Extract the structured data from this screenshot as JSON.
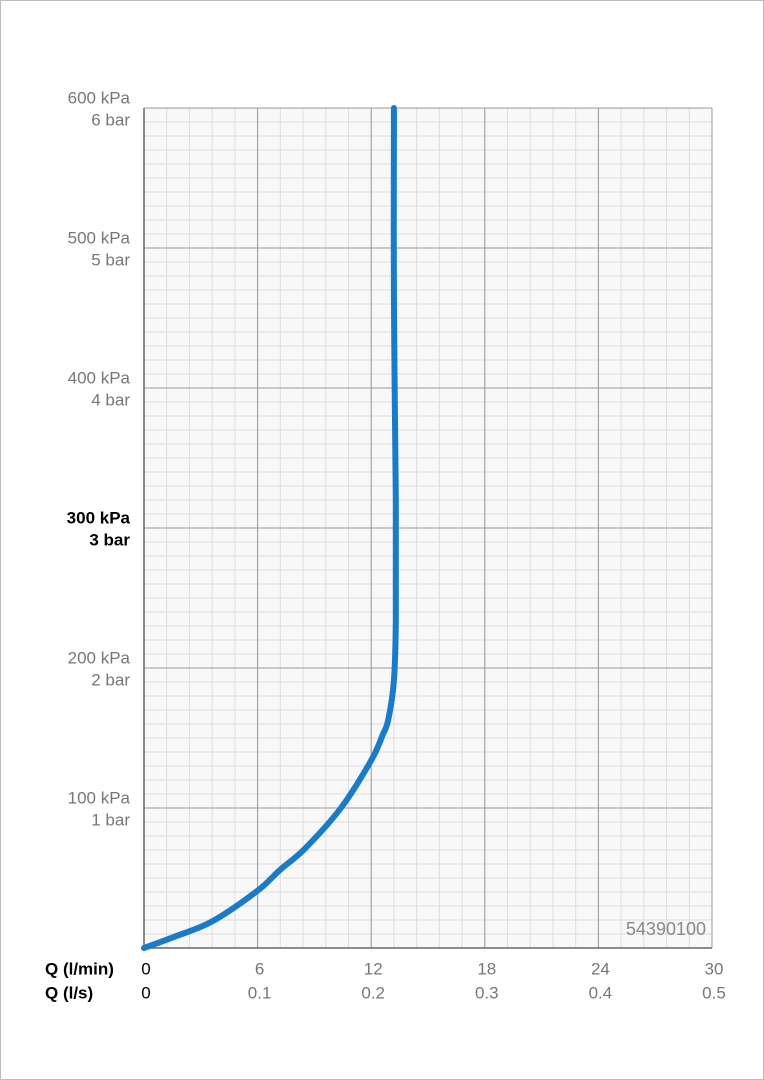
{
  "chart_data": {
    "type": "line",
    "code": "54390100",
    "x_label": "Q (l/min)",
    "x2_label": "Q (l/s)",
    "xlim": [
      0,
      30
    ],
    "xticks": [
      0,
      6,
      12,
      18,
      24,
      30
    ],
    "x2lim": [
      0,
      0.5
    ],
    "x2ticks": [
      0,
      0.1,
      0.2,
      0.3,
      0.4,
      0.5
    ],
    "ylim": [
      0,
      600
    ],
    "yticks": [
      {
        "value": 100,
        "label": "100 kPa"
      },
      {
        "value": 200,
        "label": "200 kPa"
      },
      {
        "value": 300,
        "label": "300 kPa"
      },
      {
        "value": 400,
        "label": "400 kPa"
      },
      {
        "value": 500,
        "label": "500 kPa"
      },
      {
        "value": 600,
        "label": "600 kPa"
      }
    ],
    "y2lim": [
      0,
      6
    ],
    "y2ticks": [
      {
        "value": 1,
        "label": "1 bar"
      },
      {
        "value": 2,
        "label": "2 bar"
      },
      {
        "value": 3,
        "label": "3 bar"
      },
      {
        "value": 4,
        "label": "4 bar"
      },
      {
        "value": 5,
        "label": "5 bar"
      },
      {
        "value": 6,
        "label": "6 bar"
      }
    ],
    "highlight_y": 300,
    "grid": true,
    "series": [
      {
        "color": "#1a7bc9",
        "x": [
          0,
          1.6,
          3.6,
          6.0,
          7.2,
          8.5,
          10.4,
          12.0,
          12.6,
          12.9,
          13.2,
          13.3,
          13.3,
          13.2,
          13.2
        ],
        "values": [
          0,
          8,
          19,
          41,
          56,
          71,
          100,
          134,
          152,
          163,
          191,
          234,
          320,
          463,
          600
        ]
      }
    ]
  }
}
